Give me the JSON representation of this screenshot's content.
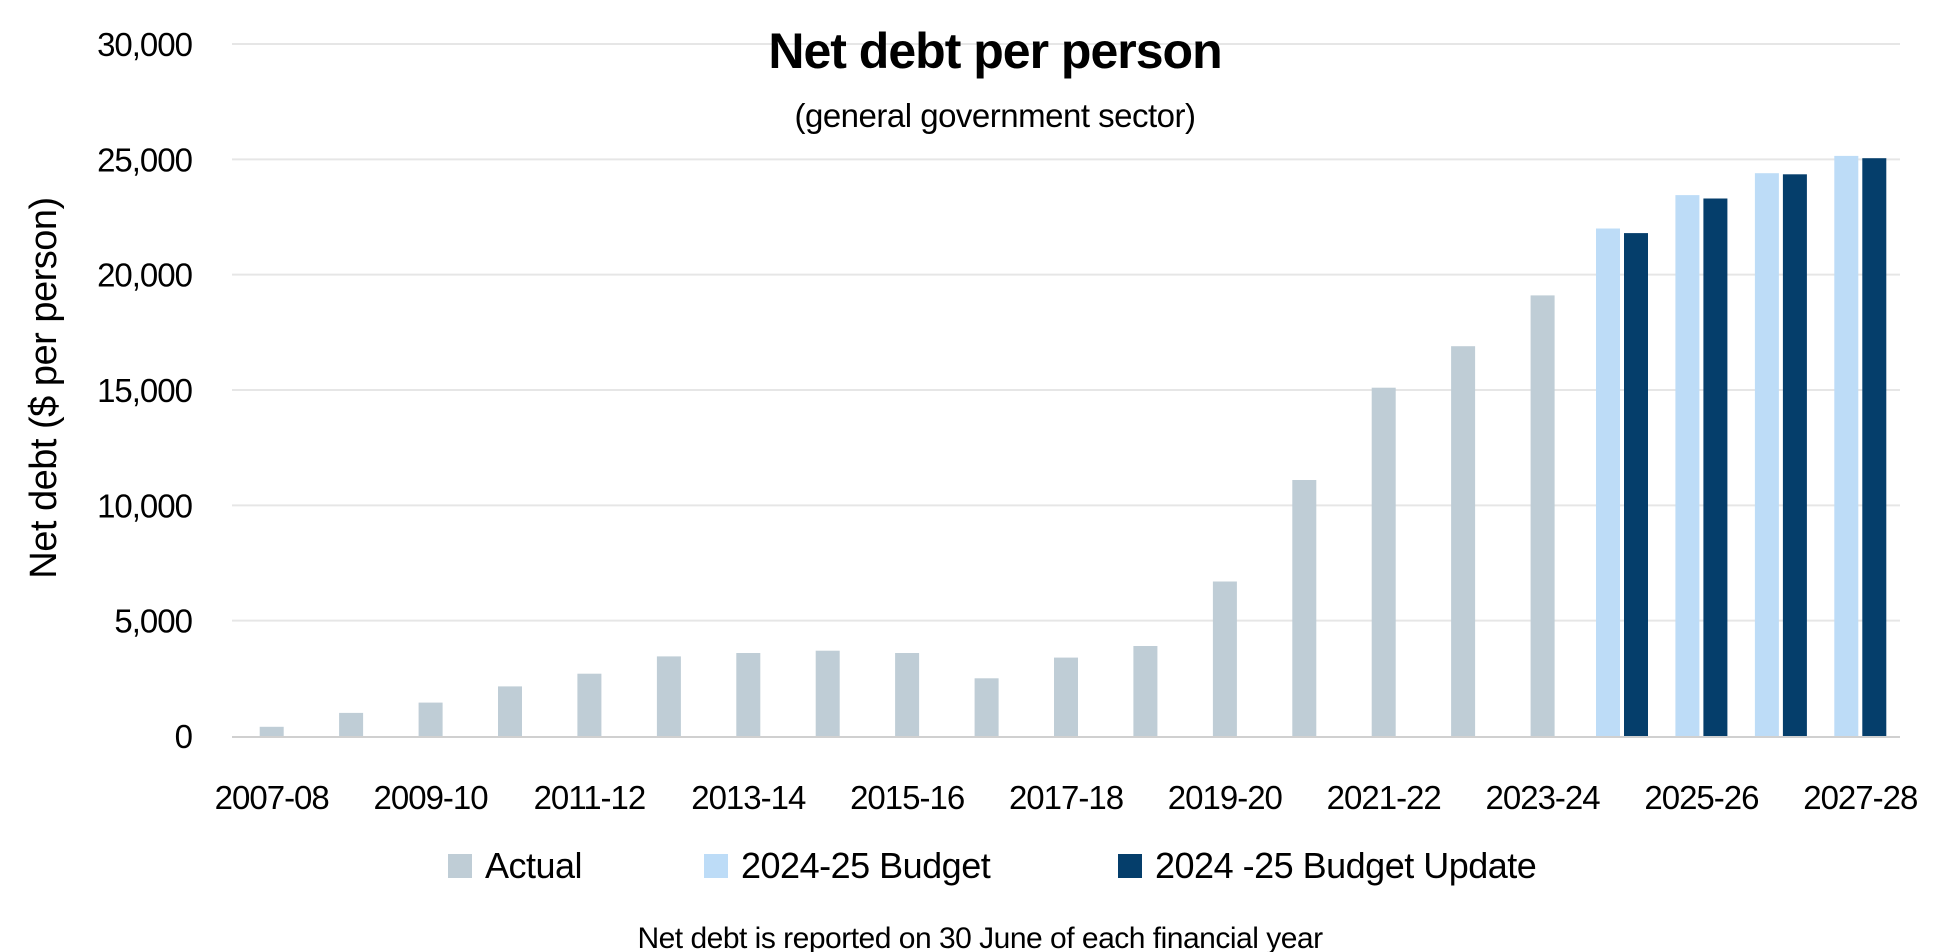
{
  "chart_data": {
    "type": "bar",
    "title": "Net debt per person",
    "subtitle": "(general government sector)",
    "ylabel": "Net debt  ($ per person)",
    "xlabel": "",
    "ylim": [
      0,
      30000
    ],
    "yticks": [
      0,
      5000,
      10000,
      15000,
      20000,
      25000,
      30000
    ],
    "ytick_labels": [
      "0",
      "5,000",
      "10,000",
      "15,000",
      "20,000",
      "25,000",
      "30,000"
    ],
    "categories": [
      "2007-08",
      "2008-09",
      "2009-10",
      "2010-11",
      "2011-12",
      "2012-13",
      "2013-14",
      "2014-15",
      "2015-16",
      "2016-17",
      "2017-18",
      "2018-19",
      "2019-20",
      "2020-21",
      "2021-22",
      "2022-23",
      "2023-24",
      "2024-25",
      "2025-26",
      "2026-27",
      "2027-28"
    ],
    "xtick_labels": [
      "2007-08",
      "2009-10",
      "2011-12",
      "2013-14",
      "2015-16",
      "2017-18",
      "2019-20",
      "2021-22",
      "2023-24",
      "2025-26",
      "2027-28"
    ],
    "series": [
      {
        "name": "Actual",
        "color": "#bfcdd6",
        "values": [
          400,
          1000,
          1450,
          2150,
          2700,
          3450,
          3600,
          3700,
          3600,
          2500,
          3400,
          3900,
          6700,
          11100,
          15100,
          16900,
          19100,
          null,
          null,
          null,
          null
        ]
      },
      {
        "name": "2024-25 Budget",
        "color": "#bddcf7",
        "values": [
          null,
          null,
          null,
          null,
          null,
          null,
          null,
          null,
          null,
          null,
          null,
          null,
          null,
          null,
          null,
          null,
          null,
          22000,
          23450,
          24400,
          25150
        ]
      },
      {
        "name": "2024 -25 Budget Update",
        "color": "#053e6b",
        "values": [
          null,
          null,
          null,
          null,
          null,
          null,
          null,
          null,
          null,
          null,
          null,
          null,
          null,
          null,
          null,
          null,
          null,
          21800,
          23300,
          24350,
          25050
        ]
      }
    ],
    "grid": true,
    "legend_position": "bottom",
    "note": "Net debt is reported on 30 June of each financial year"
  }
}
